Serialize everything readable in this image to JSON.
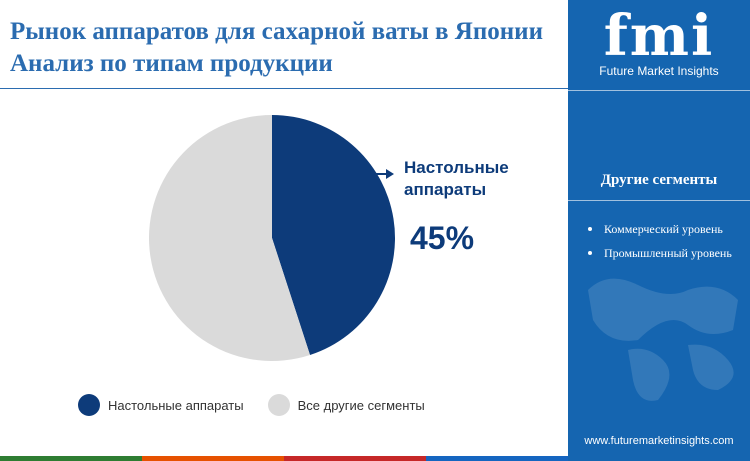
{
  "header": {
    "title": "Рынок аппаратов для сахарной ваты в Японии Анализ по типам продукции"
  },
  "brand": {
    "logo_text": "fmi",
    "company_name": "Future Market Insights",
    "website": "www.futuremarketinsights.com"
  },
  "side_panel": {
    "title": "Другие сегменты",
    "items": [
      "Коммерческий уровень",
      "Промышленный уровень"
    ]
  },
  "callout": {
    "label": "Настольные аппараты",
    "value": "45%"
  },
  "colors": {
    "accent": "#2b6cb0",
    "panel": "#1565b0",
    "primary_slice": "#0d3b7a",
    "other_slice": "#dadada",
    "bottom_bar": [
      "#2e7d32",
      "#e65100",
      "#c62828",
      "#1565c0"
    ]
  },
  "chart_data": {
    "type": "pie",
    "title": "",
    "categories": [
      "Настольные аппараты",
      "Все другие сегменты"
    ],
    "values": [
      45,
      55
    ],
    "unit": "%",
    "colors": [
      "#0d3b7a",
      "#dadada"
    ],
    "legend": "bottom"
  }
}
